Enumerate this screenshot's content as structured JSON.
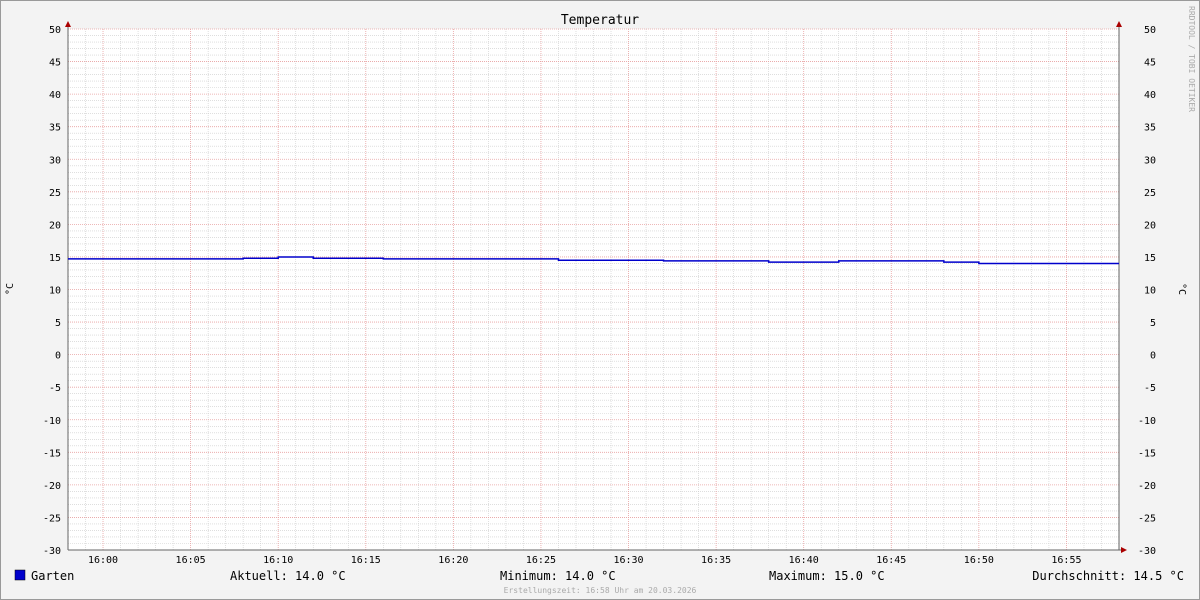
{
  "chart_data": {
    "type": "line",
    "title": "Temperatur",
    "ylabel_left": "°C",
    "ylabel_right": "°C",
    "ylim": [
      -30,
      50
    ],
    "yticks": [
      50,
      45,
      40,
      35,
      30,
      25,
      20,
      15,
      10,
      5,
      0,
      -5,
      -10,
      -15,
      -20,
      -25,
      -30
    ],
    "xlim": [
      "15:58",
      "16:58"
    ],
    "xticks": [
      "16:00",
      "16:05",
      "16:10",
      "16:15",
      "16:20",
      "16:25",
      "16:30",
      "16:35",
      "16:40",
      "16:45",
      "16:50",
      "16:55"
    ],
    "grid": true,
    "series": [
      {
        "name": "Garten",
        "color": "#0000cc",
        "step": true,
        "x": [
          "15:58",
          "16:08",
          "16:10",
          "16:12",
          "16:16",
          "16:26",
          "16:32",
          "16:38",
          "16:42",
          "16:48",
          "16:50"
        ],
        "values": [
          14.7,
          14.8,
          15.0,
          14.8,
          14.7,
          14.5,
          14.4,
          14.2,
          14.4,
          14.2,
          14.0
        ]
      }
    ],
    "legend": {
      "series_label": "Garten",
      "current": "Aktuell: 14.0 °C",
      "minimum": "Minimum: 14.0 °C",
      "maximum": "Maximum: 15.0 °C",
      "average": "Durchschnitt: 14.5 °C"
    },
    "footer": "Erstellungszeit: 16:58 Uhr am 20.03.2026",
    "watermark": "RRDTOOL / TOBI OETIKER"
  }
}
